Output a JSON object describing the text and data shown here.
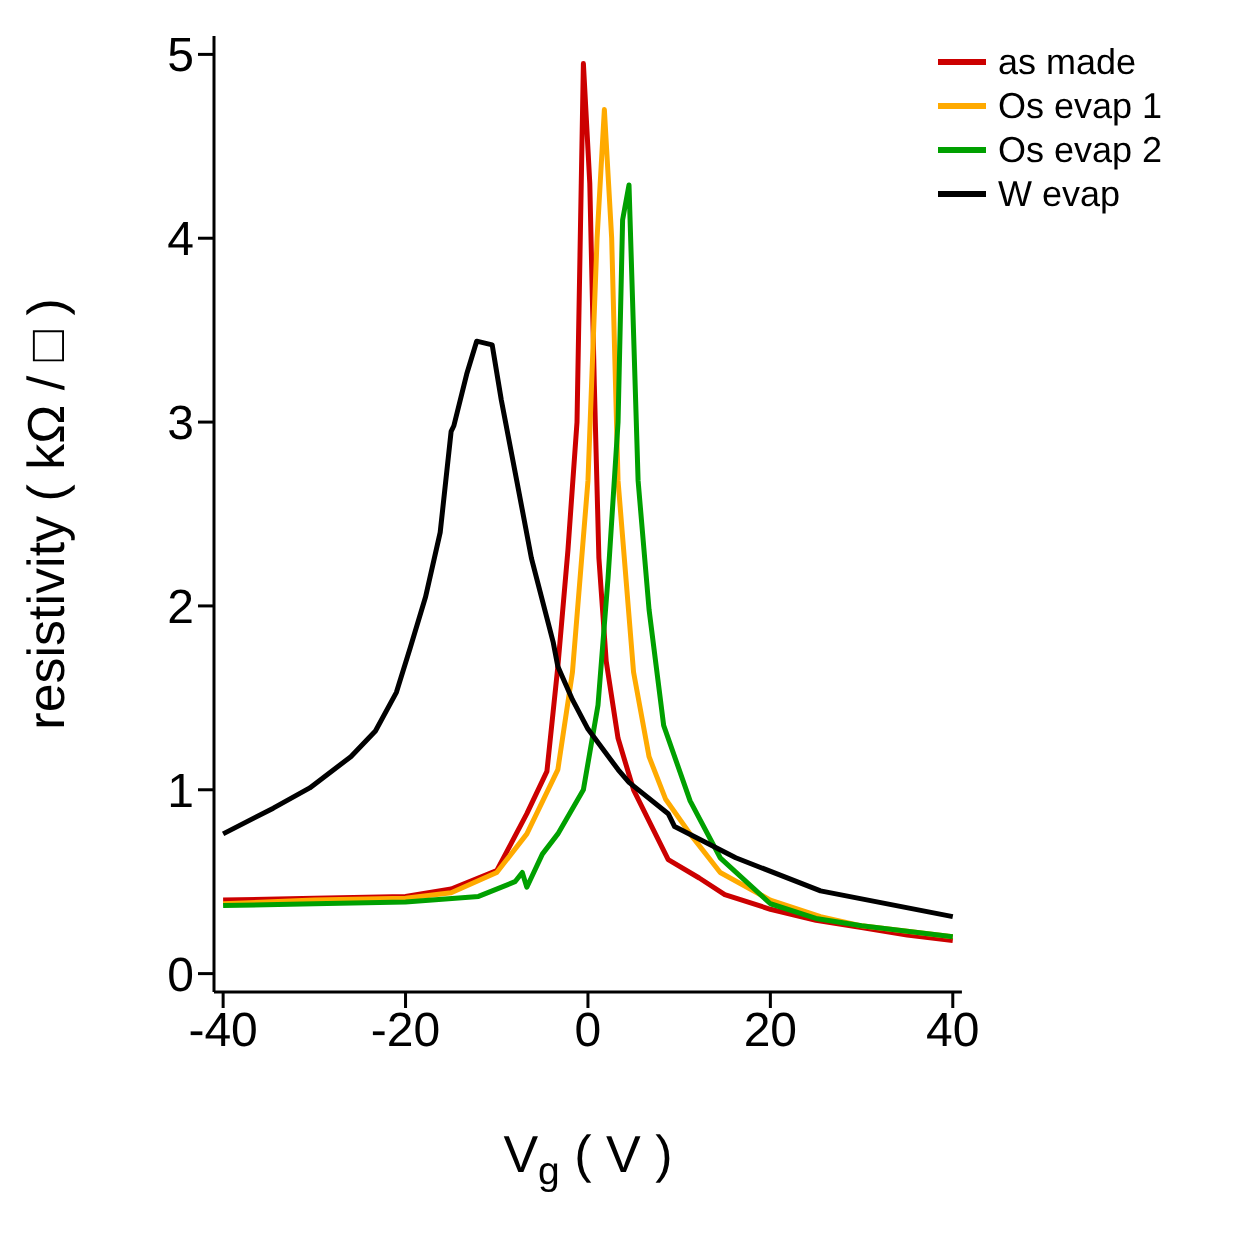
{
  "chart_data": {
    "type": "line",
    "xlabel": "V$_{g}$ ( V )",
    "ylabel": "resistivity ( kΩ / □ )",
    "xlim": [
      -41,
      41
    ],
    "ylim": [
      -0.1,
      5.1
    ],
    "xticks": [
      -40,
      -20,
      0,
      20,
      40
    ],
    "yticks": [
      0,
      1,
      2,
      3,
      4,
      5
    ],
    "grid": false,
    "legend": "top right",
    "marker": "none",
    "line_style": "solid",
    "series": [
      {
        "name": "as made",
        "color": "#cc0000",
        "x": [
          -40,
          -30,
          -20,
          -15,
          -10,
          -6.7,
          -4.5,
          -3.3,
          -2.2,
          -1.2,
          -0.5,
          0.2,
          0.7,
          1.2,
          2,
          3.3,
          5,
          6.7,
          8.8,
          12.2,
          15,
          20,
          25,
          30,
          35,
          40
        ],
        "values": [
          0.4,
          0.41,
          0.42,
          0.46,
          0.56,
          0.87,
          1.1,
          1.67,
          2.3,
          3.0,
          4.95,
          4.3,
          3.2,
          2.26,
          1.7,
          1.28,
          1.0,
          0.83,
          0.62,
          0.52,
          0.43,
          0.35,
          0.29,
          0.25,
          0.21,
          0.18
        ]
      },
      {
        "name": "Os evap 1",
        "color": "#ffaa00",
        "x": [
          -40,
          -30,
          -20,
          -15,
          -10,
          -6.7,
          -3.3,
          -1.7,
          0,
          1,
          1.8,
          2.6,
          3.3,
          5,
          6.7,
          8.5,
          11.2,
          14.5,
          20,
          25.5,
          30,
          35,
          40
        ],
        "values": [
          0.38,
          0.4,
          0.41,
          0.44,
          0.55,
          0.76,
          1.11,
          1.64,
          2.68,
          4.0,
          4.7,
          4.0,
          2.68,
          1.64,
          1.18,
          0.95,
          0.76,
          0.55,
          0.4,
          0.31,
          0.26,
          0.23,
          0.2
        ]
      },
      {
        "name": "Os evap 2",
        "color": "#00a000",
        "x": [
          -40,
          -30,
          -20,
          -12,
          -8,
          -7.2,
          -6.7,
          -5,
          -3.3,
          -0.5,
          1.1,
          2.2,
          3.3,
          3.8,
          4.5,
          5.5,
          6.7,
          8.3,
          11.2,
          14.5,
          20,
          25,
          30,
          35,
          40
        ],
        "values": [
          0.37,
          0.38,
          0.39,
          0.42,
          0.5,
          0.55,
          0.47,
          0.65,
          0.76,
          1.0,
          1.46,
          2.15,
          3.0,
          4.1,
          4.29,
          2.68,
          1.98,
          1.35,
          0.94,
          0.63,
          0.38,
          0.3,
          0.26,
          0.23,
          0.2
        ]
      },
      {
        "name": "W evap",
        "color": "#000000",
        "x": [
          -40,
          -34.5,
          -30.5,
          -26,
          -23.3,
          -21,
          -19.5,
          -17.8,
          -16.2,
          -15,
          -14.7,
          -13.3,
          -12.2,
          -10.5,
          -9.5,
          -7.8,
          -6.2,
          -3.8,
          -3.3,
          -1.7,
          0,
          3.3,
          4.5,
          8.8,
          9.5,
          16.2,
          25.5,
          40
        ],
        "values": [
          0.76,
          0.9,
          1.01,
          1.18,
          1.32,
          1.53,
          1.77,
          2.05,
          2.4,
          2.95,
          2.98,
          3.26,
          3.44,
          3.42,
          3.12,
          2.68,
          2.26,
          1.8,
          1.67,
          1.49,
          1.33,
          1.11,
          1.04,
          0.87,
          0.8,
          0.63,
          0.45,
          0.31
        ]
      }
    ]
  }
}
